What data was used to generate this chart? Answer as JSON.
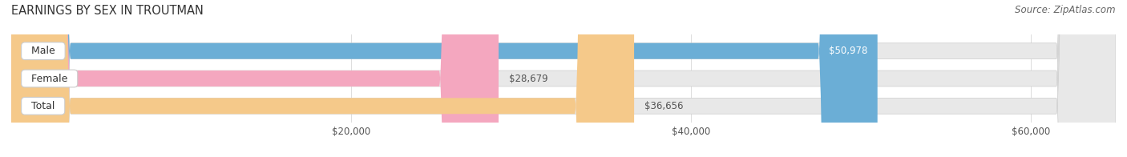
{
  "title": "EARNINGS BY SEX IN TROUTMAN",
  "source": "Source: ZipAtlas.com",
  "categories": [
    "Male",
    "Female",
    "Total"
  ],
  "values": [
    50978,
    28679,
    36656
  ],
  "bar_colors": [
    "#6baed6",
    "#f4a7bf",
    "#f5c98a"
  ],
  "bar_bg_color": "#e8e8e8",
  "xlim": [
    0,
    65000
  ],
  "xticks": [
    20000,
    40000,
    60000
  ],
  "xtick_labels": [
    "$20,000",
    "$40,000",
    "$60,000"
  ],
  "value_labels": [
    "$50,978",
    "$28,679",
    "$36,656"
  ],
  "title_fontsize": 10.5,
  "source_fontsize": 8.5,
  "tick_fontsize": 8.5,
  "bar_label_fontsize": 8.5,
  "cat_fontsize": 9,
  "fig_bg_color": "#ffffff",
  "bar_height": 0.58,
  "title_color": "#333333",
  "source_color": "#666666",
  "tick_color": "#555555",
  "value_color_inside": "#ffffff",
  "value_color_outside": "#555555",
  "value_threshold": 48000
}
